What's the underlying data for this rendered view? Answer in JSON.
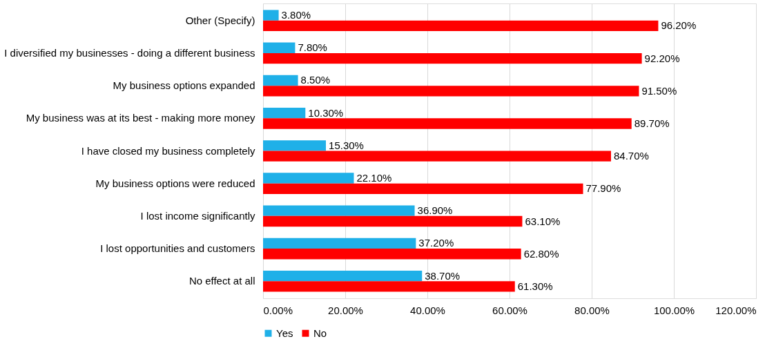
{
  "chart_data": {
    "type": "bar",
    "orientation": "horizontal",
    "categories": [
      "Other (Specify)",
      "I diversified my businesses - doing a different business",
      "My business options expanded",
      "My business was at its best - making more money",
      "I have closed my business completely",
      "My business options were reduced",
      "I lost income significantly",
      "I lost opportunities and customers",
      "No effect at all"
    ],
    "series": [
      {
        "name": "Yes",
        "color": "#1fb0e8",
        "values": [
          3.8,
          7.8,
          8.5,
          10.3,
          15.3,
          22.1,
          36.9,
          37.2,
          38.7
        ],
        "value_labels": [
          "3.80%",
          "7.80%",
          "8.50%",
          "10.30%",
          "15.30%",
          "22.10%",
          "36.90%",
          "37.20%",
          "38.70%"
        ]
      },
      {
        "name": "No",
        "color": "#ff0000",
        "values": [
          96.2,
          92.2,
          91.5,
          89.7,
          84.7,
          77.9,
          63.1,
          62.8,
          61.3
        ],
        "value_labels": [
          "96.20%",
          "92.20%",
          "91.50%",
          "89.70%",
          "84.70%",
          "77.90%",
          "63.10%",
          "62.80%",
          "61.30%"
        ]
      }
    ],
    "xlim": [
      0,
      120
    ],
    "xticks": [
      {
        "value": 0,
        "label": "0.00%"
      },
      {
        "value": 20,
        "label": "20.00%"
      },
      {
        "value": 40,
        "label": "40.00%"
      },
      {
        "value": 60,
        "label": "60.00%"
      },
      {
        "value": 80,
        "label": "80.00%"
      },
      {
        "value": 100,
        "label": "100.00%"
      },
      {
        "value": 120,
        "label": "120.00%"
      }
    ],
    "grid": "x",
    "legend": "bottom"
  }
}
